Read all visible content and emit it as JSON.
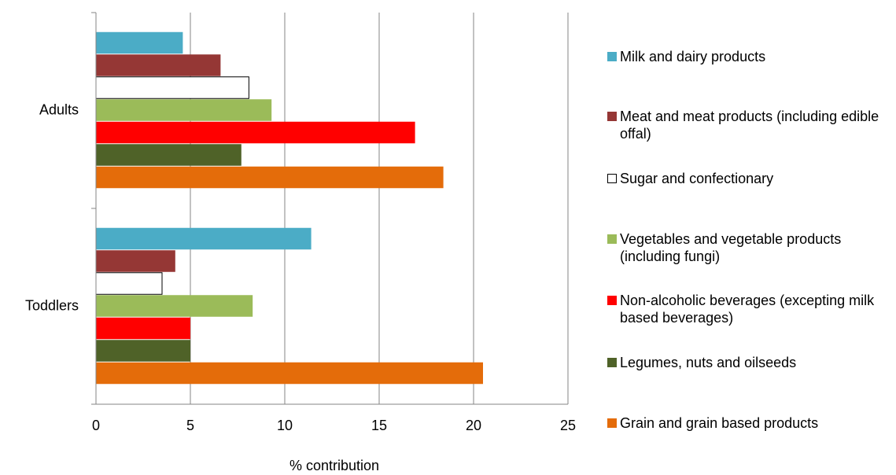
{
  "chart_data": {
    "type": "barh",
    "categories": [
      "Adults",
      "Toddlers"
    ],
    "series": [
      {
        "name": "Milk and dairy products",
        "color": "#4bacc6",
        "values": [
          4.6,
          11.4
        ]
      },
      {
        "name": "Meat and meat products (including edible offal)",
        "color": "#953735",
        "values": [
          6.6,
          4.2
        ]
      },
      {
        "name": "Sugar and confectionary",
        "color": "#ffffff",
        "values": [
          8.1,
          3.5
        ]
      },
      {
        "name": "Vegetables and vegetable products (including fungi)",
        "color": "#9bbb59",
        "values": [
          9.3,
          8.3
        ]
      },
      {
        "name": "Non-alcoholic beverages (excepting milk based beverages)",
        "color": "#ff0000",
        "values": [
          16.9,
          5.0
        ]
      },
      {
        "name": "Legumes, nuts and oilseeds",
        "color": "#4f6228",
        "values": [
          7.7,
          5.0
        ]
      },
      {
        "name": "Grain and grain based products",
        "color": "#e46c0a",
        "values": [
          18.4,
          20.5
        ]
      }
    ],
    "xlabel": "% contribution",
    "xlim": [
      0,
      25
    ],
    "xticks": [
      0,
      5,
      10,
      15,
      20,
      25
    ],
    "grid": true,
    "legend": "right"
  }
}
